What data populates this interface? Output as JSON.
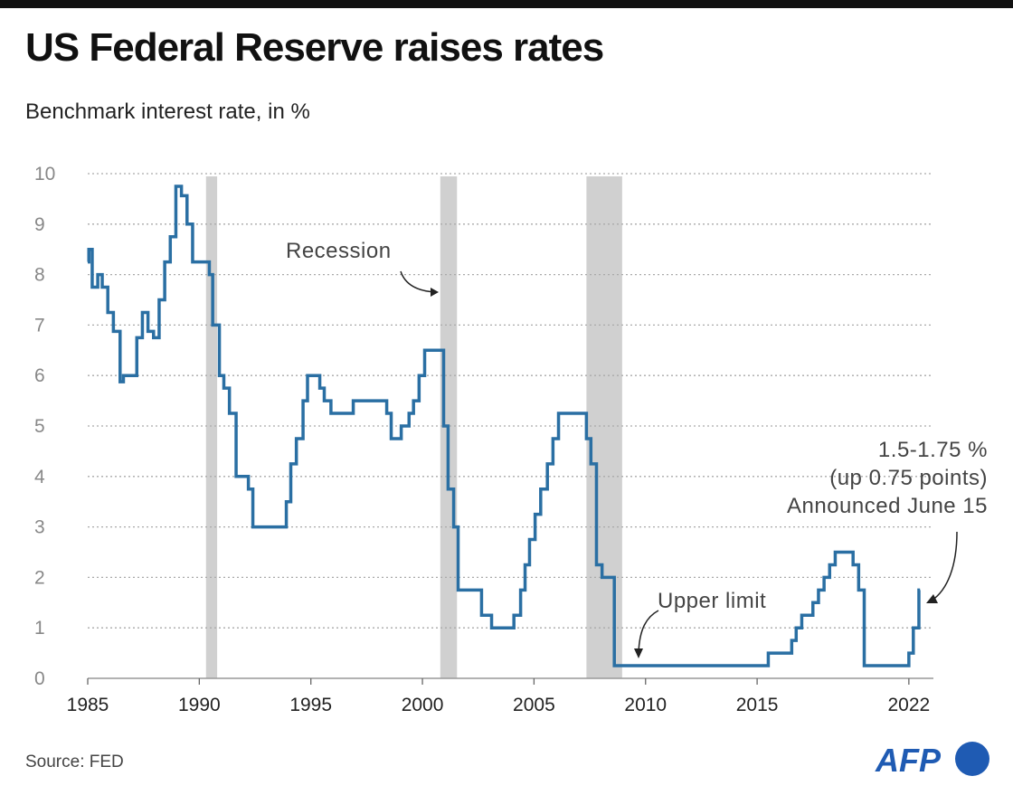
{
  "title": "US Federal Reserve raises rates",
  "subtitle": "Benchmark interest rate, in %",
  "source": "Source: FED",
  "logo": "AFP",
  "colors": {
    "line": "#2a6fa3",
    "recession": "#d0d0d0",
    "logo": "#1f5bb3"
  },
  "chart_data": {
    "type": "line",
    "step": true,
    "title": "US Federal Reserve raises rates",
    "ylabel": "Benchmark interest rate, in %",
    "xlim": [
      1985,
      2023
    ],
    "ylim": [
      0,
      10
    ],
    "grid": true,
    "y_ticks": [
      "0",
      "1",
      "2",
      "3",
      "4",
      "5",
      "6",
      "7",
      "8",
      "9",
      "10"
    ],
    "x_ticks": [
      {
        "year": 1985,
        "label": "1985"
      },
      {
        "year": 1990,
        "label": "1990"
      },
      {
        "year": 1995,
        "label": "1995"
      },
      {
        "year": 2000,
        "label": "2000"
      },
      {
        "year": 2005,
        "label": "2005"
      },
      {
        "year": 2010,
        "label": "2010"
      },
      {
        "year": 2015,
        "label": "2015"
      },
      {
        "year": 2021.8,
        "label": "2022"
      }
    ],
    "recessions": [
      [
        1990.3,
        1990.8
      ],
      [
        2000.8,
        2001.55
      ],
      [
        2007.35,
        2008.95
      ]
    ],
    "series": [
      {
        "points": [
          [
            1985.0,
            8.25
          ],
          [
            1985.05,
            8.5
          ],
          [
            1985.2,
            7.75
          ],
          [
            1985.45,
            8.0
          ],
          [
            1985.65,
            7.75
          ],
          [
            1985.9,
            7.25
          ],
          [
            1986.15,
            6.875
          ],
          [
            1986.45,
            5.875
          ],
          [
            1986.6,
            6.0
          ],
          [
            1987.2,
            6.75
          ],
          [
            1987.45,
            7.25
          ],
          [
            1987.7,
            6.875
          ],
          [
            1987.95,
            6.75
          ],
          [
            1988.2,
            7.5
          ],
          [
            1988.45,
            8.25
          ],
          [
            1988.7,
            8.75
          ],
          [
            1988.95,
            9.75
          ],
          [
            1989.2,
            9.5625
          ],
          [
            1989.45,
            9.0
          ],
          [
            1989.7,
            8.25
          ],
          [
            1990.45,
            8.0
          ],
          [
            1990.6,
            7.0
          ],
          [
            1990.9,
            6.0
          ],
          [
            1991.1,
            5.75
          ],
          [
            1991.35,
            5.25
          ],
          [
            1991.65,
            4.0
          ],
          [
            1992.2,
            3.75
          ],
          [
            1992.4,
            3.0
          ],
          [
            1993.9,
            3.5
          ],
          [
            1994.1,
            4.25
          ],
          [
            1994.35,
            4.75
          ],
          [
            1994.65,
            5.5
          ],
          [
            1994.85,
            6.0
          ],
          [
            1995.4,
            5.75
          ],
          [
            1995.6,
            5.5
          ],
          [
            1995.9,
            5.25
          ],
          [
            1996.9,
            5.5
          ],
          [
            1998.4,
            5.25
          ],
          [
            1998.6,
            4.75
          ],
          [
            1999.05,
            5.0
          ],
          [
            1999.4,
            5.25
          ],
          [
            1999.6,
            5.5
          ],
          [
            1999.85,
            6.0
          ],
          [
            2000.1,
            6.5
          ],
          [
            2000.95,
            5.0
          ],
          [
            2001.15,
            3.75
          ],
          [
            2001.4,
            3.0
          ],
          [
            2001.6,
            1.75
          ],
          [
            2002.65,
            1.25
          ],
          [
            2003.1,
            1.0
          ],
          [
            2004.1,
            1.25
          ],
          [
            2004.4,
            1.75
          ],
          [
            2004.6,
            2.25
          ],
          [
            2004.8,
            2.75
          ],
          [
            2005.05,
            3.25
          ],
          [
            2005.3,
            3.75
          ],
          [
            2005.6,
            4.25
          ],
          [
            2005.85,
            4.75
          ],
          [
            2006.1,
            5.25
          ],
          [
            2007.35,
            4.75
          ],
          [
            2007.55,
            4.25
          ],
          [
            2007.8,
            2.25
          ],
          [
            2008.05,
            2.0
          ],
          [
            2008.6,
            0.25
          ],
          [
            2015.5,
            0.5
          ],
          [
            2016.55,
            0.75
          ],
          [
            2016.75,
            1.0
          ],
          [
            2017.0,
            1.25
          ],
          [
            2017.5,
            1.5
          ],
          [
            2017.75,
            1.75
          ],
          [
            2018.0,
            2.0
          ],
          [
            2018.25,
            2.25
          ],
          [
            2018.5,
            2.5
          ],
          [
            2019.3,
            2.25
          ],
          [
            2019.55,
            1.75
          ],
          [
            2019.8,
            0.25
          ],
          [
            2021.8,
            0.5
          ],
          [
            2022.0,
            1.0
          ],
          [
            2022.25,
            1.75
          ],
          [
            2022.3,
            1.75
          ]
        ]
      }
    ],
    "annotations": {
      "recession": "Recession",
      "upper_limit": "Upper limit",
      "latest": [
        "1.5-1.75 %",
        "(up 0.75 points)",
        "Announced June 15"
      ]
    }
  }
}
